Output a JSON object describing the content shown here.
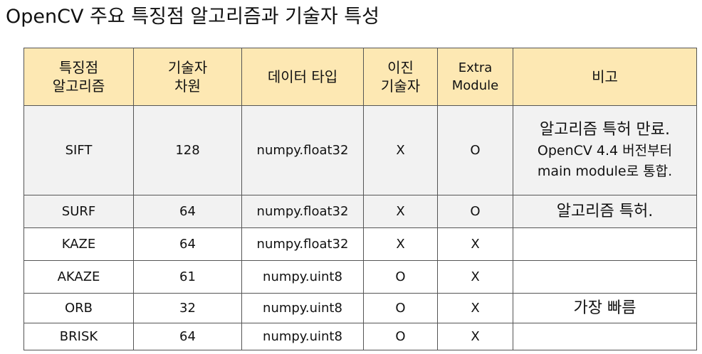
{
  "title": "OpenCV 주요 특징점 알고리즘과 기술자 특성",
  "table": {
    "headers": [
      {
        "lines": [
          "특징점",
          "알고리즘"
        ]
      },
      {
        "lines": [
          "기술자",
          "차원"
        ]
      },
      {
        "lines": [
          "데이터 타입"
        ]
      },
      {
        "lines": [
          "이진",
          "기술자"
        ]
      },
      {
        "lines": [
          "Extra",
          "Module"
        ]
      },
      {
        "lines": [
          "비고"
        ]
      }
    ],
    "rows": [
      {
        "algorithm": "SIFT",
        "dimension": "128",
        "dtype": "numpy.float32",
        "binary": "X",
        "extra": "O",
        "note_main": "알고리즘 특허 만료.",
        "note_sub1": "OpenCV 4.4 버전부터",
        "note_sub2": "main module로 통합."
      },
      {
        "algorithm": "SURF",
        "dimension": "64",
        "dtype": "numpy.float32",
        "binary": "X",
        "extra": "O",
        "note_main": "알고리즘 특허."
      },
      {
        "algorithm": "KAZE",
        "dimension": "64",
        "dtype": "numpy.float32",
        "binary": "X",
        "extra": "X",
        "note_main": ""
      },
      {
        "algorithm": "AKAZE",
        "dimension": "61",
        "dtype": "numpy.uint8",
        "binary": "O",
        "extra": "X",
        "note_main": ""
      },
      {
        "algorithm": "ORB",
        "dimension": "32",
        "dtype": "numpy.uint8",
        "binary": "O",
        "extra": "X",
        "note_main": "가장 빠름"
      },
      {
        "algorithm": "BRISK",
        "dimension": "64",
        "dtype": "numpy.uint8",
        "binary": "O",
        "extra": "X",
        "note_main": ""
      }
    ]
  },
  "colors": {
    "header_bg": "#fde8b3",
    "shaded_row_bg": "#f2f2f2",
    "border": "#555555"
  }
}
